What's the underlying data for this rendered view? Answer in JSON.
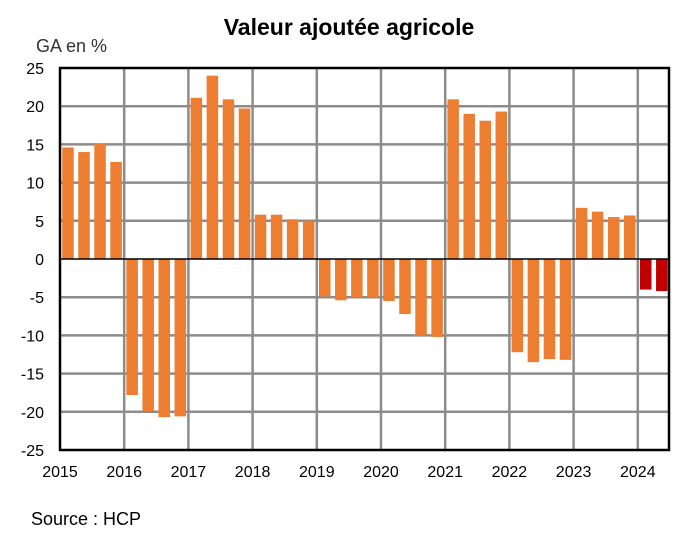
{
  "title": "Valeur ajoutée agricole",
  "y_axis_label": "GA en %",
  "source": "Source : HCP",
  "colors": {
    "bar_default": "#ED7D31",
    "bar_highlight": "#C00000",
    "grid": "#8C8C8C",
    "axis": "#000000"
  },
  "chart_data": {
    "type": "bar",
    "title": "Valeur ajoutée agricole",
    "xlabel": "",
    "ylabel": "GA en %",
    "ylim": [
      -25,
      25
    ],
    "yticks": [
      25,
      20,
      15,
      10,
      5,
      0,
      -5,
      -10,
      -15,
      -20,
      -25
    ],
    "grid": true,
    "legend": null,
    "annotation": "Source : HCP",
    "categories": [
      "2015",
      "2016",
      "2017",
      "2018",
      "2019",
      "2020",
      "2021",
      "2022",
      "2023",
      "2024"
    ],
    "quarters_per_year": 4,
    "series": [
      {
        "name": "GA en %",
        "data": [
          {
            "year": "2015",
            "values": [
              14.6,
              14.0,
              15.1,
              12.7
            ]
          },
          {
            "year": "2016",
            "values": [
              -17.8,
              -19.9,
              -20.7,
              -20.6
            ]
          },
          {
            "year": "2017",
            "values": [
              21.1,
              24.0,
              20.9,
              19.7
            ]
          },
          {
            "year": "2018",
            "values": [
              5.8,
              5.8,
              5.2,
              5.0
            ]
          },
          {
            "year": "2019",
            "values": [
              -4.9,
              -5.4,
              -5.0,
              -5.0
            ]
          },
          {
            "year": "2020",
            "values": [
              -5.5,
              -7.2,
              -10.0,
              -10.2
            ]
          },
          {
            "year": "2021",
            "values": [
              20.9,
              19.0,
              18.1,
              19.3
            ]
          },
          {
            "year": "2022",
            "values": [
              -12.2,
              -13.5,
              -13.1,
              -13.2
            ]
          },
          {
            "year": "2023",
            "values": [
              6.7,
              6.2,
              5.5,
              5.7
            ]
          },
          {
            "year": "2024",
            "values": [
              -4.0,
              -4.2
            ],
            "color": "#C00000"
          }
        ]
      }
    ]
  }
}
